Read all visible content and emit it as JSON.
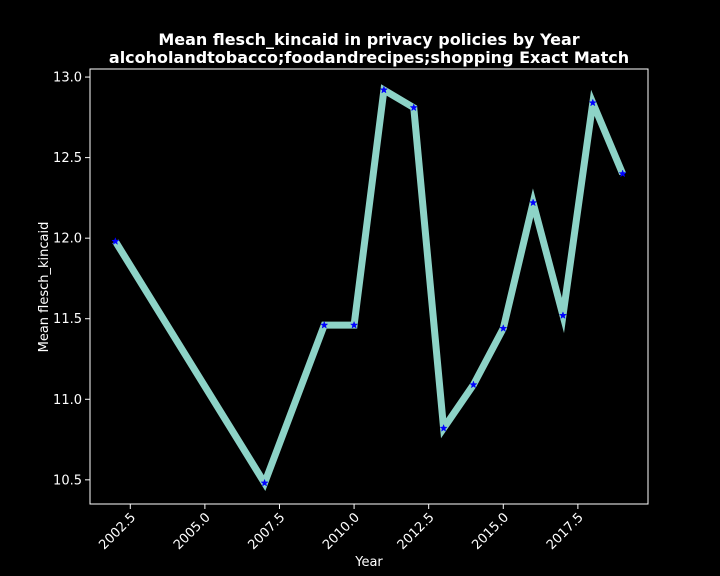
{
  "chart_data": {
    "type": "line",
    "title": "Mean flesch_kincaid in privacy policies by Year",
    "subtitle": "alcoholandtobacco;foodandrecipes;shopping Exact Match",
    "xlabel": "Year",
    "ylabel": "Mean flesch_kincaid",
    "xlim": [
      2001.15,
      2019.85
    ],
    "ylim": [
      10.35,
      13.05
    ],
    "x_ticks": [
      2002.5,
      2005.0,
      2007.5,
      2010.0,
      2012.5,
      2015.0,
      2017.5
    ],
    "x_tick_labels": [
      "2002.5",
      "2005.0",
      "2007.5",
      "2010.0",
      "2012.5",
      "2015.0",
      "2017.5"
    ],
    "y_ticks": [
      10.5,
      11.0,
      11.5,
      12.0,
      12.5,
      13.0
    ],
    "y_tick_labels": [
      "10.5",
      "11.0",
      "11.5",
      "12.0",
      "12.5",
      "13.0"
    ],
    "grid": false,
    "series": [
      {
        "x": [
          2002,
          2007,
          2009,
          2010,
          2011,
          2012,
          2013,
          2014,
          2015,
          2016,
          2017,
          2018,
          2019
        ],
        "values": [
          11.98,
          10.48,
          11.46,
          11.46,
          12.92,
          12.81,
          10.82,
          11.09,
          11.44,
          12.22,
          11.52,
          12.84,
          12.4
        ],
        "line_color": "#8dd3c7",
        "marker_color": "#0000ff",
        "marker": "star"
      }
    ],
    "colors": {
      "background": "#000000",
      "axes": "#ffffff",
      "text": "#ffffff"
    }
  }
}
